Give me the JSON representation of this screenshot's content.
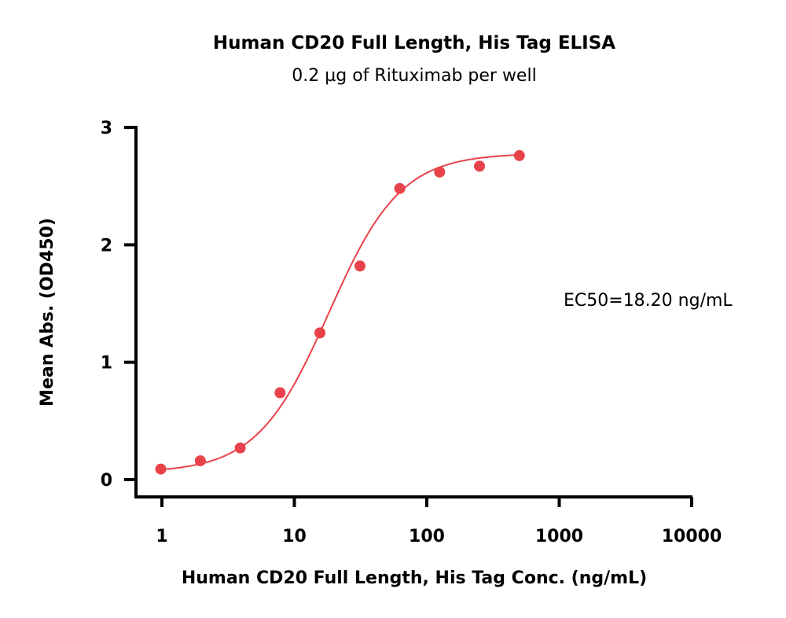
{
  "chart_data": {
    "type": "scatter",
    "title": "Human CD20 Full Length, His Tag ELISA",
    "subtitle": "0.2 µg of Rituximab per well",
    "xlabel": "Human CD20 Full Length, His Tag Conc. (ng/mL)",
    "ylabel": "Mean Abs. (OD450)",
    "x_scale": "log",
    "xlim": [
      0.8,
      10000
    ],
    "ylim": [
      -0.15,
      3
    ],
    "x_ticks": [
      {
        "value": 1,
        "label": "1"
      },
      {
        "value": 10,
        "label": "10"
      },
      {
        "value": 100,
        "label": "100"
      },
      {
        "value": 1000,
        "label": "1000"
      },
      {
        "value": 10000,
        "label": "10000"
      }
    ],
    "y_ticks": [
      {
        "value": 0,
        "label": "0"
      },
      {
        "value": 1,
        "label": "1"
      },
      {
        "value": 2,
        "label": "2"
      },
      {
        "value": 3,
        "label": "3"
      }
    ],
    "grid": false,
    "color": "#e8424a",
    "points": [
      {
        "x": 0.98,
        "y": 0.09
      },
      {
        "x": 1.95,
        "y": 0.16
      },
      {
        "x": 3.9,
        "y": 0.27
      },
      {
        "x": 7.8,
        "y": 0.74
      },
      {
        "x": 15.6,
        "y": 1.25
      },
      {
        "x": 31.3,
        "y": 1.82
      },
      {
        "x": 62.5,
        "y": 2.48
      },
      {
        "x": 125,
        "y": 2.62
      },
      {
        "x": 250,
        "y": 2.67
      },
      {
        "x": 500,
        "y": 2.76
      }
    ],
    "fit": {
      "model": "4PL",
      "bottom": 0.06,
      "top": 2.78,
      "ec50": 18.2,
      "hill": 1.6
    },
    "annotation": "EC50=18.20 ng/mL"
  }
}
